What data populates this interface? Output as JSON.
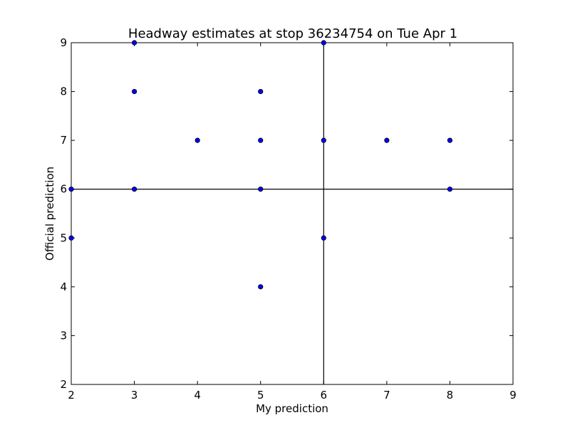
{
  "chart_data": {
    "type": "scatter",
    "title": "Headway estimates at stop 36234754 on Tue Apr 1",
    "xlabel": "My prediction",
    "ylabel": "Official prediction",
    "xlim": [
      2,
      9
    ],
    "ylim": [
      2,
      9
    ],
    "xticks": [
      "2",
      "3",
      "4",
      "5",
      "6",
      "7",
      "8",
      "9"
    ],
    "yticks": [
      "2",
      "3",
      "4",
      "5",
      "6",
      "7",
      "8",
      "9"
    ],
    "grid": false,
    "reference_lines": {
      "x": 6,
      "y": 6
    },
    "marker_color": "#0000ff",
    "marker_edge_color": "#000000",
    "points": [
      {
        "x": 3,
        "y": 9
      },
      {
        "x": 6,
        "y": 9
      },
      {
        "x": 3,
        "y": 8
      },
      {
        "x": 5,
        "y": 8
      },
      {
        "x": 4,
        "y": 7
      },
      {
        "x": 5,
        "y": 7
      },
      {
        "x": 6,
        "y": 7
      },
      {
        "x": 7,
        "y": 7
      },
      {
        "x": 8,
        "y": 7
      },
      {
        "x": 2,
        "y": 6
      },
      {
        "x": 3,
        "y": 6
      },
      {
        "x": 5,
        "y": 6
      },
      {
        "x": 8,
        "y": 6
      },
      {
        "x": 2,
        "y": 5
      },
      {
        "x": 6,
        "y": 5
      },
      {
        "x": 5,
        "y": 4
      }
    ]
  }
}
